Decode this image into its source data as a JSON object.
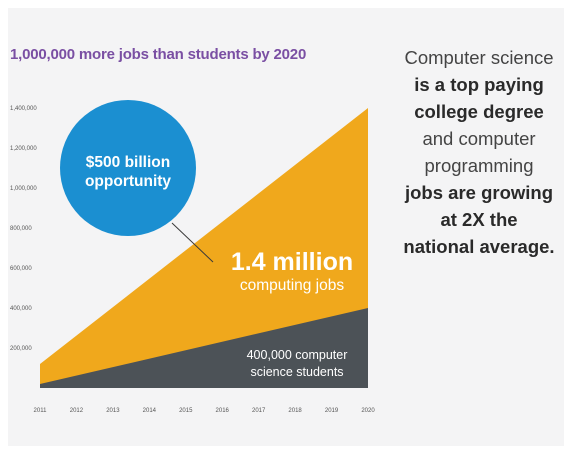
{
  "chart_data": {
    "type": "area",
    "title": "1,000,000 more jobs than students by 2020",
    "x": [
      "2011",
      "2012",
      "2013",
      "2014",
      "2015",
      "2016",
      "2017",
      "2018",
      "2019",
      "2020"
    ],
    "ylim": [
      0,
      1400000
    ],
    "yticks": [
      "200,000",
      "400,000",
      "600,000",
      "800,000",
      "1,000,000",
      "1,200,000",
      "1,400,000"
    ],
    "series": [
      {
        "name": "1.4 million computing jobs",
        "color": "#f0a81c",
        "start": 120000,
        "end": 1400000
      },
      {
        "name": "400,000 computer science students",
        "color": "#4c5257",
        "start": 20000,
        "end": 400000
      }
    ],
    "annotations": {
      "circle_line1": "$500 billion",
      "circle_line2": "opportunity",
      "jobs_big": "1.4 million",
      "jobs_small": "computing jobs",
      "students_line1": "400,000 computer",
      "students_line2": "science students"
    },
    "circle_color": "#1b8fd1"
  },
  "side_text": [
    {
      "text": "Computer science",
      "bold": false
    },
    {
      "text": "is a top paying",
      "bold": true
    },
    {
      "text": "college degree",
      "bold": true
    },
    {
      "text": "and computer",
      "bold": false
    },
    {
      "text": "programming",
      "bold": false
    },
    {
      "text": "jobs are growing",
      "bold": true
    },
    {
      "text": "at 2X the",
      "bold": true
    },
    {
      "text": "national average.",
      "bold": true
    }
  ]
}
